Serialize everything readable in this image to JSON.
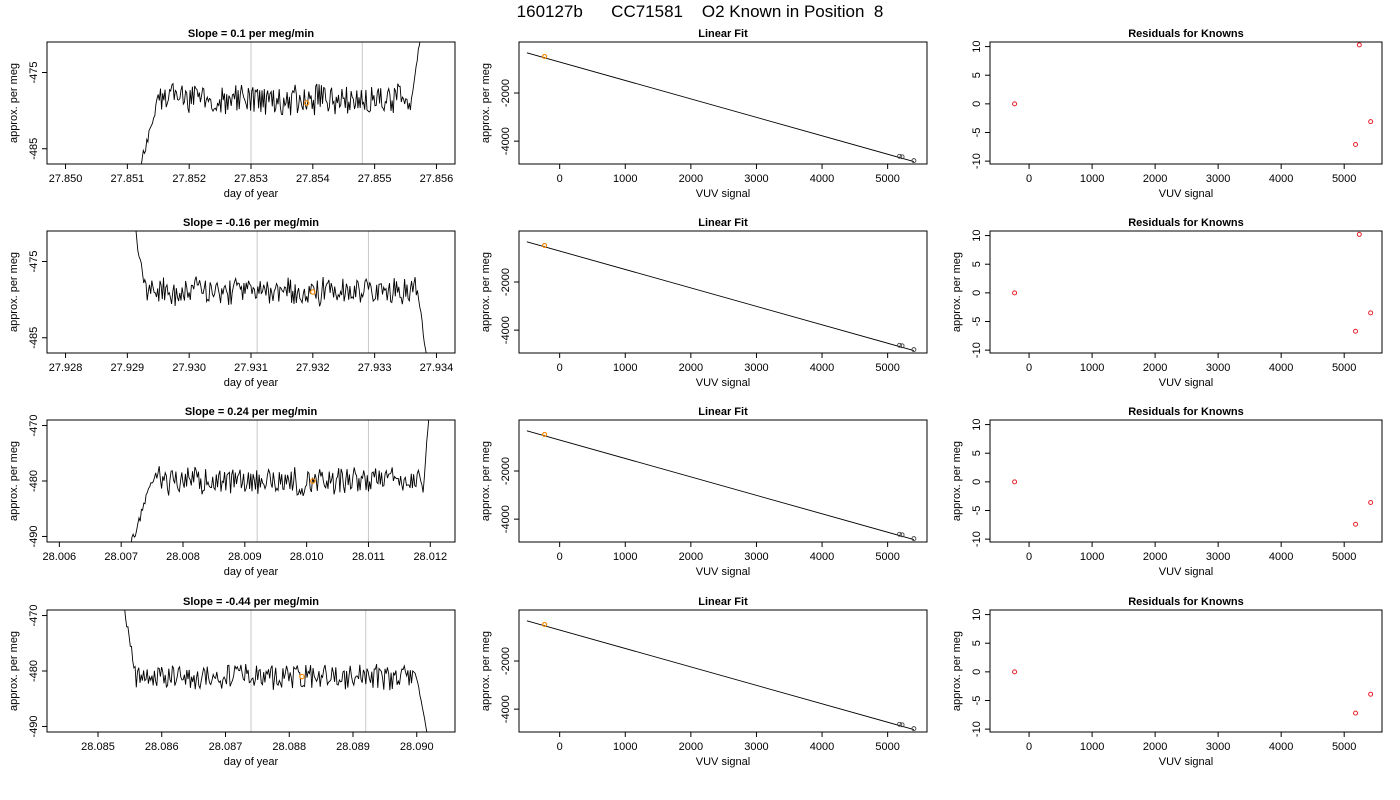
{
  "title": "160127b      CC71581    O2 Known in Position  8",
  "colors": {
    "series_line": "#000000",
    "marker": "#ff8c00",
    "residual_marker": "#e8202a",
    "cycle_lines": "#c8c8c8"
  },
  "chart_data": [
    {
      "type": "line",
      "title": "Slope =  0.1  per meg/min",
      "xlabel": "day of year",
      "ylabel": "approx. per meg",
      "xlim": [
        27.8497,
        27.8563
      ],
      "ylim": [
        -487,
        -471
      ],
      "xticks": [
        27.85,
        27.851,
        27.852,
        27.853,
        27.854,
        27.855,
        27.856
      ],
      "xtick_labels": [
        "27.850",
        "27.851",
        "27.852",
        "27.853",
        "27.854",
        "27.855",
        "27.856"
      ],
      "yticks": [
        -475,
        -485
      ],
      "ytick_labels": [
        "-475",
        "-485"
      ],
      "vlines": [
        27.853,
        27.8548
      ],
      "marker": [
        27.8539,
        -479.0
      ],
      "trace": {
        "x0": 27.851,
        "x1": 27.8558,
        "pre": -490,
        "mid": -478.5,
        "amp": 1.8,
        "post": -468,
        "rise_at": 27.8515,
        "fall_at": 27.8556,
        "seed": 3
      }
    },
    {
      "type": "scatter",
      "title": "Linear Fit",
      "xlabel": "VUV signal",
      "ylabel": "approx. per meg",
      "xlim": [
        -620,
        5600
      ],
      "ylim": [
        -4950,
        120
      ],
      "xticks": [
        0,
        1000,
        2000,
        3000,
        4000,
        5000
      ],
      "xtick_labels": [
        "0",
        "1000",
        "2000",
        "3000",
        "4000",
        "5000"
      ],
      "yticks": [
        -2000,
        -4000
      ],
      "ytick_labels": [
        "-2000",
        "-4000"
      ],
      "fit_line": [
        [
          -500,
          -330
        ],
        [
          5400,
          -4850
        ]
      ],
      "points": [
        [
          -230,
          -480
        ],
        [
          5180,
          -4630
        ],
        [
          5220,
          -4650
        ],
        [
          5400,
          -4810
        ]
      ],
      "marker": [
        -230,
        -480
      ]
    },
    {
      "type": "scatter",
      "title": "Residuals for Knowns",
      "xlabel": "VUV signal",
      "ylabel": "",
      "xlim": [
        -620,
        5600
      ],
      "ylim": [
        -10.5,
        10.8
      ],
      "xticks": [
        0,
        1000,
        2000,
        3000,
        4000,
        5000
      ],
      "xtick_labels": [
        "0",
        "1000",
        "2000",
        "3000",
        "4000",
        "5000"
      ],
      "yticks": [
        10,
        5,
        0,
        -5,
        -10
      ],
      "ytick_labels": [
        "10",
        "5",
        "0",
        "-5",
        "-10"
      ],
      "points": [
        [
          -230,
          0
        ],
        [
          5240,
          10.3
        ],
        [
          5180,
          -7.1
        ],
        [
          5420,
          -3.1
        ]
      ]
    },
    {
      "type": "line",
      "title": "Slope =  -0.16  per meg/min",
      "xlabel": "day of year",
      "ylabel": "approx. per meg",
      "xlim": [
        27.9277,
        27.9343
      ],
      "ylim": [
        -487,
        -471
      ],
      "xticks": [
        27.928,
        27.929,
        27.93,
        27.931,
        27.932,
        27.933,
        27.934
      ],
      "xtick_labels": [
        "27.928",
        "27.929",
        "27.930",
        "27.931",
        "27.932",
        "27.933",
        "27.934"
      ],
      "yticks": [
        -475,
        -485
      ],
      "ytick_labels": [
        "-475",
        "-485"
      ],
      "vlines": [
        27.9311,
        27.9329
      ],
      "marker": [
        27.932,
        -479.0
      ],
      "trace": {
        "x0": 27.929,
        "x1": 27.9339,
        "pre": -468,
        "mid": -479.0,
        "amp": 1.6,
        "post": -490,
        "rise_at": 27.9293,
        "fall_at": 27.9337,
        "seed": 7
      }
    },
    {
      "type": "scatter",
      "title": "Linear Fit",
      "xlabel": "VUV signal",
      "ylabel": "approx. per meg",
      "xlim": [
        -620,
        5600
      ],
      "ylim": [
        -4950,
        120
      ],
      "xticks": [
        0,
        1000,
        2000,
        3000,
        4000,
        5000
      ],
      "xtick_labels": [
        "0",
        "1000",
        "2000",
        "3000",
        "4000",
        "5000"
      ],
      "yticks": [
        -2000,
        -4000
      ],
      "ytick_labels": [
        "-2000",
        "-4000"
      ],
      "fit_line": [
        [
          -500,
          -330
        ],
        [
          5400,
          -4850
        ]
      ],
      "points": [
        [
          -230,
          -480
        ],
        [
          5180,
          -4630
        ],
        [
          5220,
          -4650
        ],
        [
          5400,
          -4810
        ]
      ],
      "marker": [
        -230,
        -480
      ]
    },
    {
      "type": "scatter",
      "title": "Residuals for Knowns",
      "xlabel": "VUV signal",
      "ylabel": "approx. per meg",
      "xlim": [
        -620,
        5600
      ],
      "ylim": [
        -10.5,
        10.8
      ],
      "xticks": [
        0,
        1000,
        2000,
        3000,
        4000,
        5000
      ],
      "xtick_labels": [
        "0",
        "1000",
        "2000",
        "3000",
        "4000",
        "5000"
      ],
      "yticks": [
        10,
        5,
        0,
        -5,
        -10
      ],
      "ytick_labels": [
        "10",
        "5",
        "0",
        "-5",
        "-10"
      ],
      "points": [
        [
          -230,
          0
        ],
        [
          5240,
          10.2
        ],
        [
          5180,
          -6.7
        ],
        [
          5420,
          -3.5
        ]
      ]
    },
    {
      "type": "line",
      "title": "Slope =  0.24  per meg/min",
      "xlabel": "day of year",
      "ylabel": "approx. per meg",
      "xlim": [
        28.0058,
        28.0124
      ],
      "ylim": [
        -491,
        -469
      ],
      "xticks": [
        28.006,
        28.007,
        28.008,
        28.009,
        28.01,
        28.011,
        28.012
      ],
      "xtick_labels": [
        "28.006",
        "28.007",
        "28.008",
        "28.009",
        "28.010",
        "28.011",
        "28.012"
      ],
      "yticks": [
        -470,
        -480,
        -490
      ],
      "ytick_labels": [
        "-470",
        "-480",
        "-490"
      ],
      "vlines": [
        28.0092,
        28.011
      ],
      "marker": [
        28.0101,
        -480.0
      ],
      "trace": {
        "x0": 28.007,
        "x1": 28.012,
        "pre": -493,
        "mid": -480.0,
        "amp": 2.2,
        "post": -466,
        "rise_at": 28.0075,
        "fall_at": 28.0119,
        "seed": 11
      }
    },
    {
      "type": "scatter",
      "title": "Linear Fit",
      "xlabel": "VUV signal",
      "ylabel": "approx. per meg",
      "xlim": [
        -620,
        5600
      ],
      "ylim": [
        -4950,
        120
      ],
      "xticks": [
        0,
        1000,
        2000,
        3000,
        4000,
        5000
      ],
      "xtick_labels": [
        "0",
        "1000",
        "2000",
        "3000",
        "4000",
        "5000"
      ],
      "yticks": [
        -2000,
        -4000
      ],
      "ytick_labels": [
        "-2000",
        "-4000"
      ],
      "fit_line": [
        [
          -500,
          -330
        ],
        [
          5400,
          -4850
        ]
      ],
      "points": [
        [
          -230,
          -480
        ],
        [
          5180,
          -4630
        ],
        [
          5220,
          -4650
        ],
        [
          5400,
          -4810
        ]
      ],
      "marker": [
        -230,
        -480
      ]
    },
    {
      "type": "scatter",
      "title": "Residuals for Knowns",
      "xlabel": "VUV signal",
      "ylabel": "approx. per meg",
      "xlim": [
        -620,
        5600
      ],
      "ylim": [
        -10.5,
        10.8
      ],
      "xticks": [
        0,
        1000,
        2000,
        3000,
        4000,
        5000
      ],
      "xtick_labels": [
        "0",
        "1000",
        "2000",
        "3000",
        "4000",
        "5000"
      ],
      "yticks": [
        10,
        5,
        0,
        -5,
        -10
      ],
      "ytick_labels": [
        "10",
        "5",
        "0",
        "-5",
        "-10"
      ],
      "points": [
        [
          -230,
          0
        ],
        [
          5180,
          -7.4
        ],
        [
          5420,
          -3.6
        ]
      ]
    },
    {
      "type": "line",
      "title": "Slope =  -0.44  per meg/min",
      "xlabel": "day of year",
      "ylabel": "approx. per meg",
      "xlim": [
        28.0842,
        28.0906
      ],
      "ylim": [
        -491,
        -469
      ],
      "xticks": [
        28.085,
        28.086,
        28.087,
        28.088,
        28.089,
        28.09
      ],
      "xtick_labels": [
        "28.085",
        "28.086",
        "28.087",
        "28.088",
        "28.089",
        "28.090"
      ],
      "yticks": [
        -470,
        -480,
        -490
      ],
      "ytick_labels": [
        "-470",
        "-480",
        "-490"
      ],
      "vlines": [
        28.0874,
        28.0892
      ],
      "marker": [
        28.0882,
        -481.0
      ],
      "trace": {
        "x0": 28.0853,
        "x1": 28.0902,
        "pre": -466,
        "mid": -481.0,
        "amp": 2.0,
        "post": -493,
        "rise_at": 28.0856,
        "fall_at": 28.09,
        "seed": 17
      }
    },
    {
      "type": "scatter",
      "title": "Linear Fit",
      "xlabel": "VUV signal",
      "ylabel": "approx. per meg",
      "xlim": [
        -620,
        5600
      ],
      "ylim": [
        -4950,
        120
      ],
      "xticks": [
        0,
        1000,
        2000,
        3000,
        4000,
        5000
      ],
      "xtick_labels": [
        "0",
        "1000",
        "2000",
        "3000",
        "4000",
        "5000"
      ],
      "yticks": [
        -2000,
        -4000
      ],
      "ytick_labels": [
        "-2000",
        "-4000"
      ],
      "fit_line": [
        [
          -500,
          -330
        ],
        [
          5400,
          -4850
        ]
      ],
      "points": [
        [
          -230,
          -480
        ],
        [
          5180,
          -4630
        ],
        [
          5220,
          -4650
        ],
        [
          5400,
          -4810
        ]
      ],
      "marker": [
        -230,
        -480
      ]
    },
    {
      "type": "scatter",
      "title": "Residuals for Knowns",
      "xlabel": "VUV signal",
      "ylabel": "approx. per meg",
      "xlim": [
        -620,
        5600
      ],
      "ylim": [
        -10.5,
        10.8
      ],
      "xticks": [
        0,
        1000,
        2000,
        3000,
        4000,
        5000
      ],
      "xtick_labels": [
        "0",
        "1000",
        "2000",
        "3000",
        "4000",
        "5000"
      ],
      "yticks": [
        10,
        5,
        0,
        -5,
        -10
      ],
      "ytick_labels": [
        "10",
        "5",
        "0",
        "-5",
        "-10"
      ],
      "points": [
        [
          -230,
          0
        ],
        [
          5180,
          -7.2
        ],
        [
          5420,
          -3.9
        ]
      ]
    }
  ]
}
